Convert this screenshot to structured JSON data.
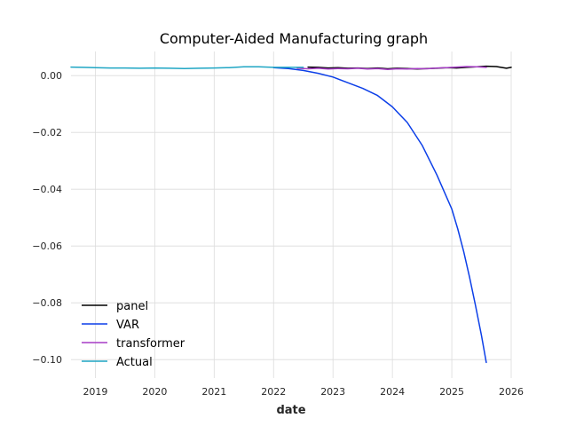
{
  "chart_data": {
    "type": "line",
    "title": "Computer-Aided Manufacturing graph",
    "xlabel": "date",
    "ylabel": "",
    "xlim": [
      2018.59,
      2026.0
    ],
    "ylim": [
      -0.1065,
      0.0085
    ],
    "x_ticks": [
      {
        "value": 2019,
        "label": "2019"
      },
      {
        "value": 2020,
        "label": "2020"
      },
      {
        "value": 2021,
        "label": "2021"
      },
      {
        "value": 2022,
        "label": "2022"
      },
      {
        "value": 2023,
        "label": "2023"
      },
      {
        "value": 2024,
        "label": "2024"
      },
      {
        "value": 2025,
        "label": "2025"
      },
      {
        "value": 2026,
        "label": "2026"
      }
    ],
    "y_ticks": [
      {
        "value": 0.0,
        "label": "0.00"
      },
      {
        "value": -0.02,
        "label": "−0.02"
      },
      {
        "value": -0.04,
        "label": "−0.04"
      },
      {
        "value": -0.06,
        "label": "−0.06"
      },
      {
        "value": -0.08,
        "label": "−0.08"
      },
      {
        "value": -0.1,
        "label": "−0.10"
      }
    ],
    "grid": true,
    "legend_position": "lower-left",
    "series": [
      {
        "name": "panel",
        "color": "#000000",
        "x": [
          2022.58,
          2022.75,
          2022.92,
          2023.08,
          2023.25,
          2023.42,
          2023.58,
          2023.75,
          2023.92,
          2024.08,
          2024.25,
          2024.42,
          2024.58,
          2024.75,
          2024.92,
          2025.08,
          2025.25,
          2025.42,
          2025.58,
          2025.75,
          2025.92,
          2026.0
        ],
        "y": [
          0.003,
          0.0029,
          0.0027,
          0.0028,
          0.0026,
          0.0027,
          0.0025,
          0.0027,
          0.0024,
          0.0026,
          0.0025,
          0.0023,
          0.0025,
          0.0026,
          0.0028,
          0.0027,
          0.0029,
          0.0031,
          0.0033,
          0.0032,
          0.0026,
          0.0029
        ]
      },
      {
        "name": "VAR",
        "color": "#0c3fe8",
        "x": [
          2022.0,
          2022.25,
          2022.5,
          2022.75,
          2023.0,
          2023.25,
          2023.5,
          2023.75,
          2024.0,
          2024.25,
          2024.5,
          2024.75,
          2025.0,
          2025.1,
          2025.2,
          2025.3,
          2025.4,
          2025.5,
          2025.58
        ],
        "y": [
          0.0028,
          0.0025,
          0.0018,
          0.0008,
          -0.0005,
          -0.0025,
          -0.0045,
          -0.007,
          -0.011,
          -0.0165,
          -0.0245,
          -0.035,
          -0.047,
          -0.054,
          -0.062,
          -0.071,
          -0.081,
          -0.0915,
          -0.101
        ]
      },
      {
        "name": "transformer",
        "color": "#a63cc6",
        "x": [
          2022.4,
          2022.58,
          2022.75,
          2022.92,
          2023.08,
          2023.25,
          2023.42,
          2023.58,
          2023.75,
          2023.92,
          2024.08,
          2024.25,
          2024.42,
          2024.58,
          2024.75,
          2024.92,
          2025.08,
          2025.25,
          2025.42,
          2025.58
        ],
        "y": [
          0.0026,
          0.0024,
          0.0026,
          0.0023,
          0.0025,
          0.0024,
          0.0026,
          0.0023,
          0.0025,
          0.0022,
          0.0024,
          0.0023,
          0.0025,
          0.0024,
          0.0027,
          0.0028,
          0.003,
          0.0032,
          0.0031,
          0.0029
        ]
      },
      {
        "name": "Actual",
        "color": "#1fa6c4",
        "x": [
          2018.59,
          2018.8,
          2019.0,
          2019.25,
          2019.5,
          2019.75,
          2020.0,
          2020.25,
          2020.5,
          2020.75,
          2021.0,
          2021.25,
          2021.5,
          2021.75,
          2022.0,
          2022.25,
          2022.5
        ],
        "y": [
          0.003,
          0.0029,
          0.0028,
          0.0027,
          0.0027,
          0.0026,
          0.0027,
          0.0026,
          0.0025,
          0.0026,
          0.0027,
          0.0028,
          0.0031,
          0.0031,
          0.0029,
          0.0029,
          0.0029
        ]
      }
    ]
  }
}
